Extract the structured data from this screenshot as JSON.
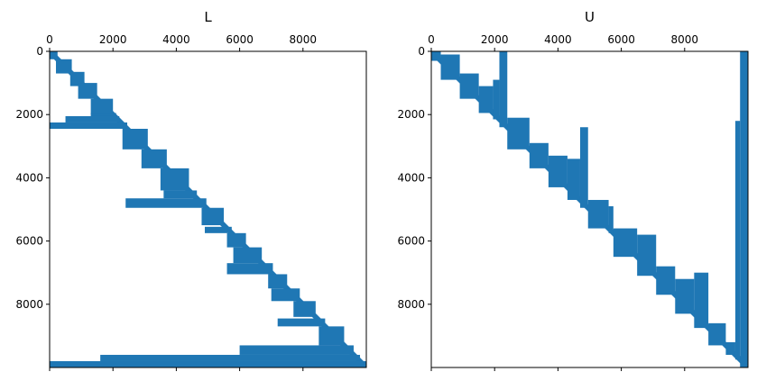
{
  "chart_data": [
    {
      "type": "spy",
      "title": "L",
      "matrix_size": 10000,
      "xlim": [
        0,
        10000
      ],
      "ylim": [
        10000,
        0
      ],
      "x_ticks": [
        0,
        2000,
        4000,
        6000,
        8000
      ],
      "x_tick_labels": [
        "0",
        "2000",
        "4000",
        "6000",
        "8000"
      ],
      "x_tick_position": "top",
      "y_ticks": [
        0,
        2000,
        4000,
        6000,
        8000
      ],
      "y_tick_labels": [
        "0",
        "2000",
        "4000",
        "6000",
        "8000"
      ],
      "color": "#1f77b4",
      "structure": "lower-triangular",
      "bands": [
        {
          "row": [
            0,
            250
          ],
          "col": [
            0,
            250
          ]
        },
        {
          "row": [
            250,
            700
          ],
          "col": [
            200,
            700
          ]
        },
        {
          "row": [
            650,
            1100
          ],
          "col": [
            650,
            1100
          ]
        },
        {
          "row": [
            1000,
            1500
          ],
          "col": [
            900,
            1500
          ]
        },
        {
          "row": [
            1500,
            2000
          ],
          "col": [
            1300,
            2000
          ]
        },
        {
          "row": [
            1950,
            2100
          ],
          "col": [
            1300,
            2100
          ]
        },
        {
          "row": [
            2050,
            2250
          ],
          "col": [
            500,
            2200
          ]
        },
        {
          "row": [
            2250,
            2450
          ],
          "col": [
            0,
            2450
          ]
        },
        {
          "row": [
            2450,
            3100
          ],
          "col": [
            2300,
            3100
          ]
        },
        {
          "row": [
            3100,
            3700
          ],
          "col": [
            2900,
            3700
          ]
        },
        {
          "row": [
            3700,
            4400
          ],
          "col": [
            3500,
            4400
          ]
        },
        {
          "row": [
            4400,
            4650
          ],
          "col": [
            3600,
            4650
          ]
        },
        {
          "row": [
            4650,
            4950
          ],
          "col": [
            2400,
            4950
          ]
        },
        {
          "row": [
            4950,
            5500
          ],
          "col": [
            4800,
            5500
          ]
        },
        {
          "row": [
            5550,
            5750
          ],
          "col": [
            4900,
            5750
          ]
        },
        {
          "row": [
            5750,
            6200
          ],
          "col": [
            5600,
            6200
          ]
        },
        {
          "row": [
            6200,
            6700
          ],
          "col": [
            5800,
            6700
          ]
        },
        {
          "row": [
            6700,
            7050
          ],
          "col": [
            5600,
            7050
          ]
        },
        {
          "row": [
            7050,
            7500
          ],
          "col": [
            6900,
            7500
          ]
        },
        {
          "row": [
            7500,
            7900
          ],
          "col": [
            7000,
            7900
          ]
        },
        {
          "row": [
            7900,
            8400
          ],
          "col": [
            7700,
            8400
          ]
        },
        {
          "row": [
            8450,
            8700
          ],
          "col": [
            7200,
            8700
          ]
        },
        {
          "row": [
            8700,
            9300
          ],
          "col": [
            8500,
            9300
          ]
        },
        {
          "row": [
            9300,
            9600
          ],
          "col": [
            6000,
            9600
          ]
        },
        {
          "row": [
            9600,
            9800
          ],
          "col": [
            1600,
            9800
          ]
        },
        {
          "row": [
            9800,
            10000
          ],
          "col": [
            0,
            10000
          ]
        }
      ]
    },
    {
      "type": "spy",
      "title": "U",
      "matrix_size": 10000,
      "xlim": [
        0,
        10000
      ],
      "ylim": [
        10000,
        0
      ],
      "x_ticks": [
        0,
        2000,
        4000,
        6000,
        8000
      ],
      "x_tick_labels": [
        "0",
        "2000",
        "4000",
        "6000",
        "8000"
      ],
      "x_tick_position": "top",
      "y_ticks": [
        0,
        2000,
        4000,
        6000,
        8000
      ],
      "y_tick_labels": [
        "0",
        "2000",
        "4000",
        "6000",
        "8000"
      ],
      "color": "#1f77b4",
      "structure": "upper-triangular",
      "bands": [
        {
          "col": [
            0,
            300
          ],
          "row": [
            0,
            300
          ]
        },
        {
          "col": [
            300,
            900
          ],
          "row": [
            100,
            900
          ]
        },
        {
          "col": [
            900,
            1500
          ],
          "row": [
            700,
            1500
          ]
        },
        {
          "col": [
            1500,
            1950
          ],
          "row": [
            1100,
            1950
          ]
        },
        {
          "col": [
            1950,
            2150
          ],
          "row": [
            900,
            2150
          ]
        },
        {
          "col": [
            2150,
            2400
          ],
          "row": [
            0,
            2400
          ]
        },
        {
          "col": [
            2400,
            3100
          ],
          "row": [
            2100,
            3100
          ]
        },
        {
          "col": [
            3100,
            3700
          ],
          "row": [
            2900,
            3700
          ]
        },
        {
          "col": [
            3700,
            4300
          ],
          "row": [
            3300,
            4300
          ]
        },
        {
          "col": [
            4300,
            4700
          ],
          "row": [
            3400,
            4700
          ]
        },
        {
          "col": [
            4700,
            4950
          ],
          "row": [
            2400,
            4950
          ]
        },
        {
          "col": [
            4950,
            5600
          ],
          "row": [
            4700,
            5600
          ]
        },
        {
          "col": [
            5600,
            5750
          ],
          "row": [
            4900,
            5750
          ]
        },
        {
          "col": [
            5750,
            6500
          ],
          "row": [
            5600,
            6500
          ]
        },
        {
          "col": [
            6500,
            7100
          ],
          "row": [
            5800,
            7100
          ]
        },
        {
          "col": [
            7100,
            7700
          ],
          "row": [
            6800,
            7700
          ]
        },
        {
          "col": [
            7700,
            8300
          ],
          "row": [
            7200,
            8300
          ]
        },
        {
          "col": [
            8300,
            8750
          ],
          "row": [
            7000,
            8750
          ]
        },
        {
          "col": [
            8750,
            9300
          ],
          "row": [
            8600,
            9300
          ]
        },
        {
          "col": [
            9300,
            9600
          ],
          "row": [
            9200,
            9600
          ]
        },
        {
          "col": [
            9600,
            9750
          ],
          "row": [
            2200,
            9750
          ]
        },
        {
          "col": [
            9750,
            10000
          ],
          "row": [
            0,
            10000
          ]
        }
      ]
    }
  ]
}
